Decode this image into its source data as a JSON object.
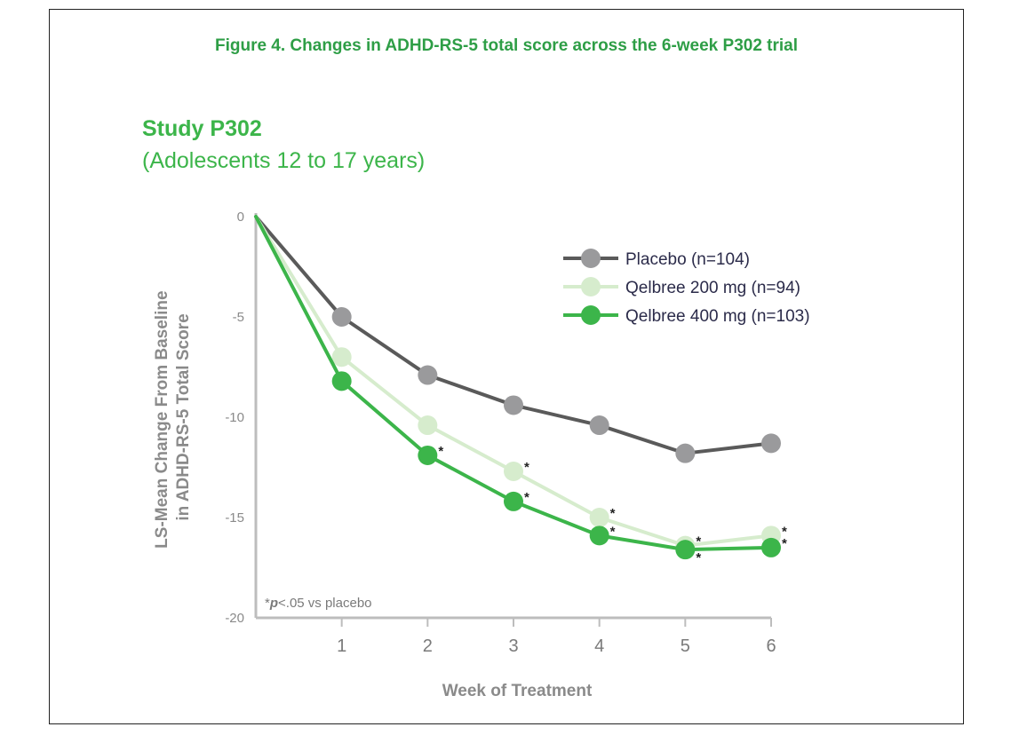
{
  "figure": {
    "title": "Figure 4. Changes in ADHD-RS-5 total score across the 6-week P302 trial",
    "study_title": "Study P302",
    "study_subtitle": "(Adolescents 12 to 17 years)"
  },
  "chart_data": {
    "type": "line",
    "title": "Figure 4. Changes in ADHD-RS-5 total score across the 6-week P302 trial",
    "xlabel": "Week of Treatment",
    "ylabel_line1": "LS-Mean Change From Baseline",
    "ylabel_line2": "in ADHD-RS-5 Total Score",
    "xlim": [
      0,
      6
    ],
    "ylim": [
      -20,
      0
    ],
    "x_ticks": [
      "1",
      "2",
      "3",
      "4",
      "5",
      "6"
    ],
    "y_ticks": [
      "0",
      "-5",
      "-10",
      "-15",
      "-20"
    ],
    "footnote_star": "*",
    "footnote_p": "p",
    "footnote_text": "<.05 vs placebo",
    "significance_marker": "*",
    "legend_position": "top-right",
    "series": [
      {
        "name": "Placebo (n=104)",
        "color": "#5a5a5a",
        "marker_color": "#9a9a9c",
        "x": [
          0,
          1,
          2,
          3,
          4,
          5,
          6
        ],
        "values": [
          0,
          -5.0,
          -7.9,
          -9.4,
          -10.4,
          -11.8,
          -11.3
        ],
        "significant": [
          false,
          false,
          false,
          false,
          false,
          false,
          false
        ]
      },
      {
        "name": "Qelbree 200 mg (n=94)",
        "color": "#d6eccd",
        "marker_color": "#d6eccd",
        "x": [
          0,
          1,
          2,
          3,
          4,
          5,
          6
        ],
        "values": [
          0,
          -7.0,
          -10.4,
          -12.7,
          -15.0,
          -16.4,
          -15.9
        ],
        "significant": [
          false,
          false,
          false,
          true,
          true,
          true,
          true
        ]
      },
      {
        "name": "Qelbree 400 mg (n=103)",
        "color": "#3cb54a",
        "marker_color": "#3cb54a",
        "x": [
          0,
          1,
          2,
          3,
          4,
          5,
          6
        ],
        "values": [
          0,
          -8.2,
          -11.9,
          -14.2,
          -15.9,
          -16.6,
          -16.5
        ],
        "significant": [
          false,
          false,
          true,
          true,
          true,
          true,
          true
        ]
      }
    ]
  }
}
